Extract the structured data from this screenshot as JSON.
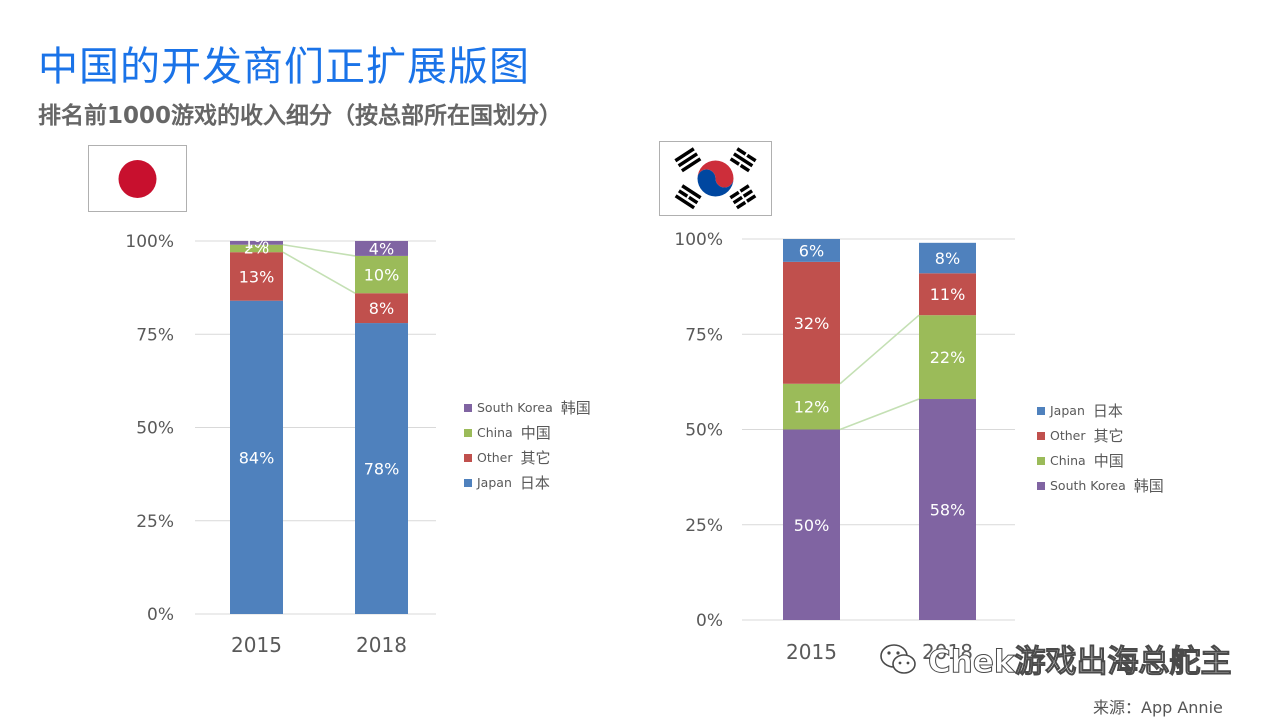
{
  "title": "中国的开发商们正扩展版图",
  "subtitle": "排名前1000游戏的收入细分（按总部所在国划分）",
  "colors": {
    "japan": "#4f81bd",
    "other": "#c0504d",
    "china": "#9bbb59",
    "south_korea": "#8064a2",
    "connector": "#c4e0b4"
  },
  "legends": {
    "left": [
      {
        "en": "South Korea",
        "cn": "韩国",
        "color": "#8064a2"
      },
      {
        "en": "China",
        "cn": "中国",
        "color": "#9bbb59"
      },
      {
        "en": "Other",
        "cn": "其它",
        "color": "#c0504d"
      },
      {
        "en": "Japan",
        "cn": "日本",
        "color": "#4f81bd"
      }
    ],
    "right": [
      {
        "en": "Japan",
        "cn": "日本",
        "color": "#4f81bd"
      },
      {
        "en": "Other",
        "cn": "其它",
        "color": "#c0504d"
      },
      {
        "en": "China",
        "cn": "中国",
        "color": "#9bbb59"
      },
      {
        "en": "South Korea",
        "cn": "韩国",
        "color": "#8064a2"
      }
    ]
  },
  "chart_data": [
    {
      "type": "bar",
      "stacked": true,
      "percent": true,
      "country_flag": "japan-flag",
      "categories": [
        "2015",
        "2018"
      ],
      "yticks": [
        "0%",
        "25%",
        "50%",
        "75%",
        "100%"
      ],
      "ylim": [
        0,
        100
      ],
      "series": [
        {
          "name": "Japan 日本",
          "color": "#4f81bd",
          "values": [
            84,
            78
          ],
          "labels": [
            "84%",
            "78%"
          ]
        },
        {
          "name": "Other 其它",
          "color": "#c0504d",
          "values": [
            13,
            8
          ],
          "labels": [
            "13%",
            "8%"
          ]
        },
        {
          "name": "China 中国",
          "color": "#9bbb59",
          "values": [
            2,
            10
          ],
          "labels": [
            "2%",
            "10%"
          ]
        },
        {
          "name": "South Korea 韩国",
          "color": "#8064a2",
          "values": [
            1,
            4
          ],
          "labels": [
            "1%",
            "4%"
          ]
        }
      ],
      "connectors": "China series"
    },
    {
      "type": "bar",
      "stacked": true,
      "percent": true,
      "country_flag": "south-korea-flag",
      "categories": [
        "2015",
        "2018"
      ],
      "yticks": [
        "0%",
        "25%",
        "50%",
        "75%",
        "100%"
      ],
      "ylim": [
        0,
        100
      ],
      "series": [
        {
          "name": "South Korea 韩国",
          "color": "#8064a2",
          "values": [
            50,
            58
          ],
          "labels": [
            "50%",
            "58%"
          ]
        },
        {
          "name": "China 中国",
          "color": "#9bbb59",
          "values": [
            12,
            22
          ],
          "labels": [
            "12%",
            "22%"
          ]
        },
        {
          "name": "Other 其它",
          "color": "#c0504d",
          "values": [
            32,
            11
          ],
          "labels": [
            "32%",
            "11%"
          ]
        },
        {
          "name": "Japan 日本",
          "color": "#4f81bd",
          "values": [
            6,
            8
          ],
          "labels": [
            "6%",
            "8%"
          ]
        }
      ],
      "connectors": "China series"
    }
  ],
  "watermark": "Chek游戏出海总舵主",
  "source": "来源：App Annie"
}
